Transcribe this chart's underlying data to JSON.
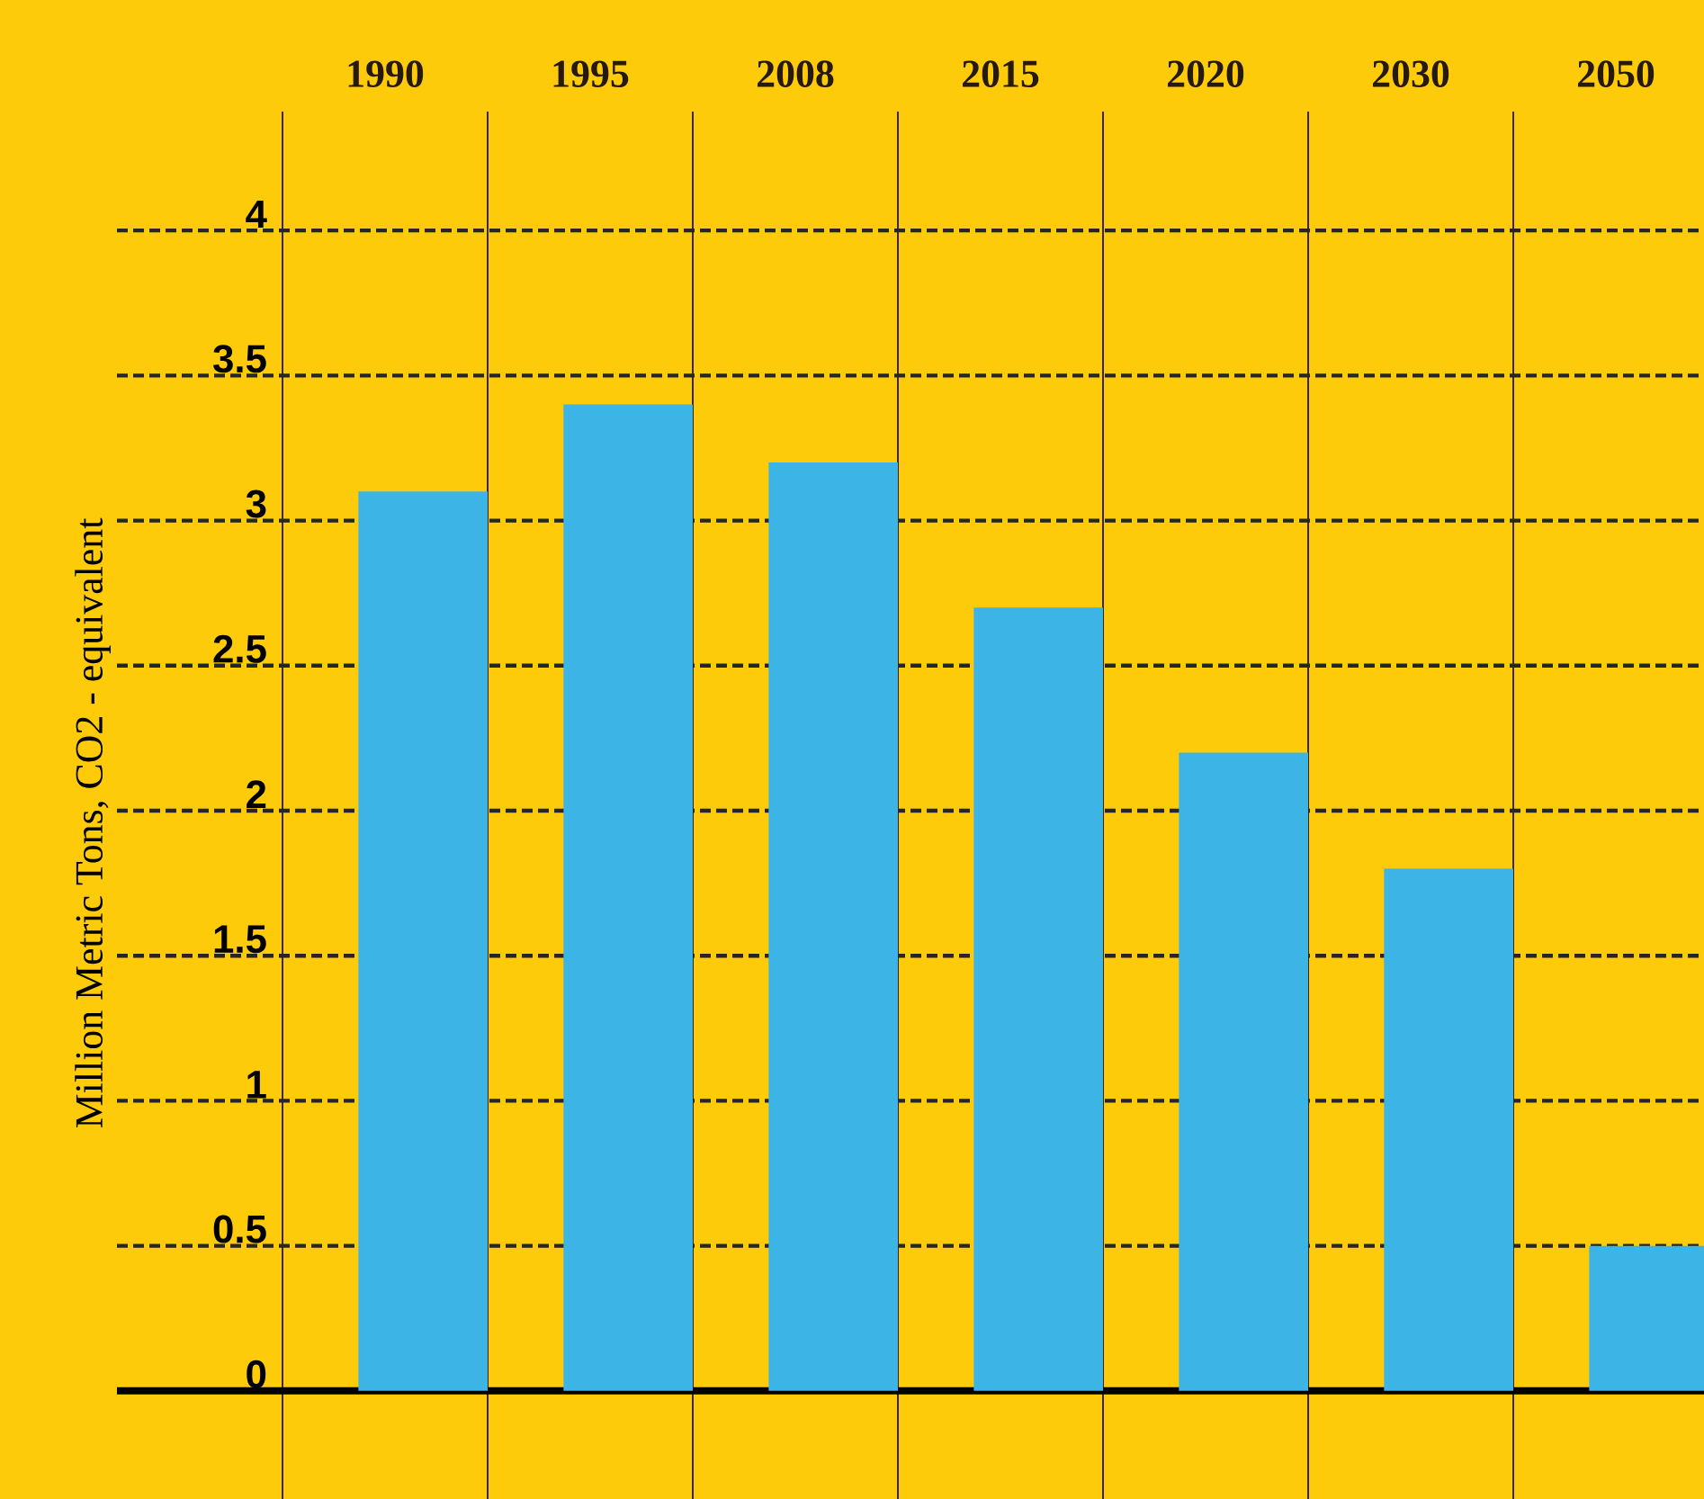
{
  "chart_data": {
    "type": "bar",
    "ylabel": "Million Metric Tons, CO2 - equivalent",
    "categories": [
      "1990",
      "1995",
      "2008",
      "2015",
      "2020",
      "2030",
      "2050"
    ],
    "values": [
      3.1,
      3.4,
      3.2,
      2.7,
      2.2,
      1.8,
      0.5
    ],
    "color": "#3cb4e5",
    "ylim": [
      0,
      4
    ],
    "yticks": [
      0,
      0.5,
      1,
      1.5,
      2,
      2.5,
      3,
      3.5,
      4
    ],
    "grid": true
  }
}
